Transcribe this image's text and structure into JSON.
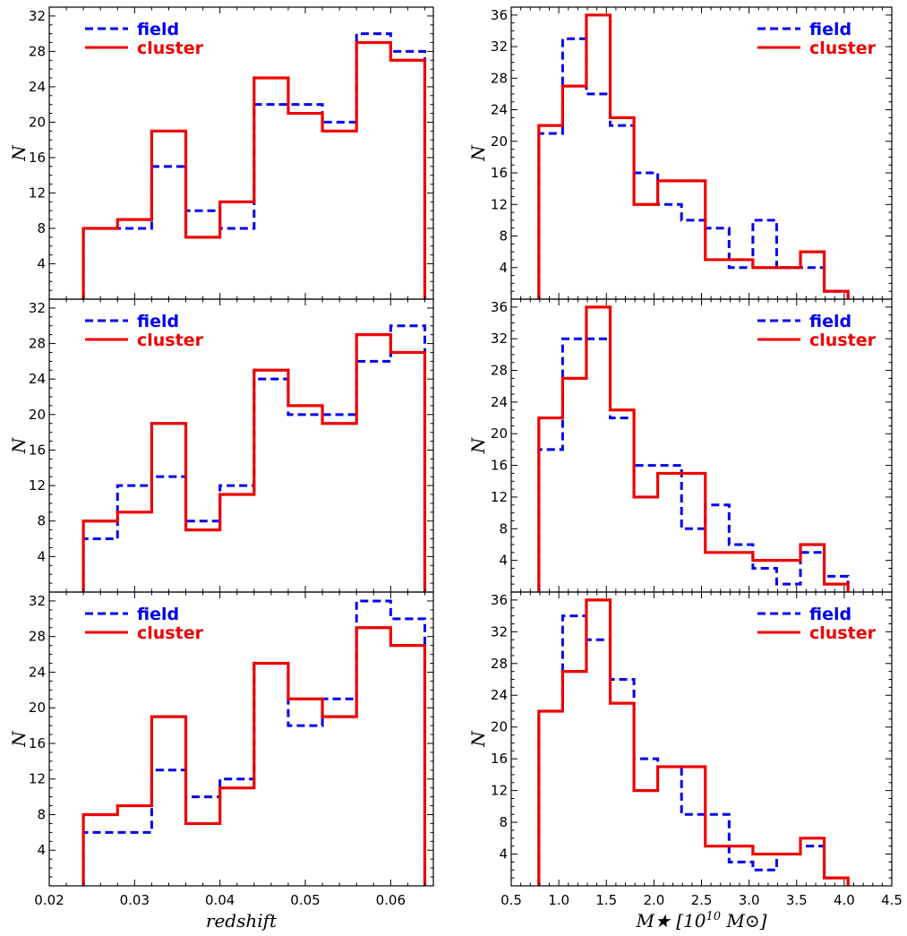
{
  "colors": {
    "field": "#0000ee",
    "cluster": "#ee0000"
  },
  "chart_data": [
    {
      "type": "histogram",
      "grid": false,
      "legend_position": "top-left",
      "xlabel": "",
      "ylabel": "N",
      "xlim": [
        0.02,
        0.065
      ],
      "ylim": [
        0,
        33
      ],
      "x_ticks": [],
      "y_ticks": [
        "4",
        "8",
        "12",
        "16",
        "20",
        "24",
        "28",
        "32"
      ],
      "bin_edges": [
        0.024,
        0.028,
        0.032,
        0.036,
        0.04,
        0.044,
        0.048,
        0.052,
        0.056,
        0.06,
        0.064
      ],
      "series": [
        {
          "name": "field",
          "line_style": "dashed",
          "values": [
            8,
            8,
            15,
            10,
            8,
            22,
            22,
            20,
            30,
            28
          ]
        },
        {
          "name": "cluster",
          "line_style": "solid",
          "values": [
            8,
            9,
            19,
            7,
            11,
            25,
            21,
            19,
            29,
            27
          ]
        }
      ]
    },
    {
      "type": "histogram",
      "grid": false,
      "legend_position": "top-right",
      "xlabel": "",
      "ylabel": "N",
      "xlim": [
        0.5,
        4.5
      ],
      "ylim": [
        0,
        37
      ],
      "x_ticks": [],
      "y_ticks": [
        "4",
        "8",
        "12",
        "16",
        "20",
        "24",
        "28",
        "32",
        "36"
      ],
      "bin_edges": [
        0.79,
        1.04,
        1.29,
        1.54,
        1.79,
        2.04,
        2.29,
        2.54,
        2.79,
        3.04,
        3.29,
        3.54,
        3.79,
        4.04
      ],
      "series": [
        {
          "name": "field",
          "line_style": "dashed",
          "values": [
            21,
            33,
            26,
            22,
            16,
            12,
            10,
            9,
            4,
            10,
            4,
            4,
            1
          ]
        },
        {
          "name": "cluster",
          "line_style": "solid",
          "values": [
            22,
            27,
            36,
            23,
            12,
            15,
            15,
            5,
            5,
            4,
            4,
            6,
            1
          ]
        }
      ]
    },
    {
      "type": "histogram",
      "grid": false,
      "legend_position": "top-left",
      "xlabel": "",
      "ylabel": "N",
      "xlim": [
        0.02,
        0.065
      ],
      "ylim": [
        0,
        33
      ],
      "x_ticks": [],
      "y_ticks": [
        "4",
        "8",
        "12",
        "16",
        "20",
        "24",
        "28",
        "32"
      ],
      "bin_edges": [
        0.024,
        0.028,
        0.032,
        0.036,
        0.04,
        0.044,
        0.048,
        0.052,
        0.056,
        0.06,
        0.064
      ],
      "series": [
        {
          "name": "field",
          "line_style": "dashed",
          "values": [
            6,
            12,
            13,
            8,
            12,
            24,
            20,
            20,
            26,
            30
          ]
        },
        {
          "name": "cluster",
          "line_style": "solid",
          "values": [
            8,
            9,
            19,
            7,
            11,
            25,
            21,
            19,
            29,
            27
          ]
        }
      ]
    },
    {
      "type": "histogram",
      "grid": false,
      "legend_position": "top-right",
      "xlabel": "",
      "ylabel": "N",
      "xlim": [
        0.5,
        4.5
      ],
      "ylim": [
        0,
        37
      ],
      "x_ticks": [],
      "y_ticks": [
        "4",
        "8",
        "12",
        "16",
        "20",
        "24",
        "28",
        "32",
        "36"
      ],
      "bin_edges": [
        0.79,
        1.04,
        1.29,
        1.54,
        1.79,
        2.04,
        2.29,
        2.54,
        2.79,
        3.04,
        3.29,
        3.54,
        3.79,
        4.04
      ],
      "series": [
        {
          "name": "field",
          "line_style": "dashed",
          "values": [
            18,
            32,
            32,
            22,
            16,
            16,
            8,
            11,
            6,
            3,
            1,
            5,
            2
          ]
        },
        {
          "name": "cluster",
          "line_style": "solid",
          "values": [
            22,
            27,
            36,
            23,
            12,
            15,
            15,
            5,
            5,
            4,
            4,
            6,
            1
          ]
        }
      ]
    },
    {
      "type": "histogram",
      "grid": false,
      "legend_position": "top-left",
      "xlabel": "redshift",
      "ylabel": "N",
      "xlim": [
        0.02,
        0.065
      ],
      "ylim": [
        0,
        33
      ],
      "x_ticks": [
        "0.02",
        "0.03",
        "0.04",
        "0.05",
        "0.06"
      ],
      "y_ticks": [
        "4",
        "8",
        "12",
        "16",
        "20",
        "24",
        "28",
        "32"
      ],
      "bin_edges": [
        0.024,
        0.028,
        0.032,
        0.036,
        0.04,
        0.044,
        0.048,
        0.052,
        0.056,
        0.06,
        0.064
      ],
      "series": [
        {
          "name": "field",
          "line_style": "dashed",
          "values": [
            6,
            6,
            13,
            10,
            12,
            25,
            18,
            21,
            32,
            30
          ]
        },
        {
          "name": "cluster",
          "line_style": "solid",
          "values": [
            8,
            9,
            19,
            7,
            11,
            25,
            21,
            19,
            29,
            27
          ]
        }
      ]
    },
    {
      "type": "histogram",
      "grid": false,
      "legend_position": "top-right",
      "xlabel": "M★ [10^10 M⊙]",
      "ylabel": "N",
      "xlim": [
        0.5,
        4.5
      ],
      "ylim": [
        0,
        37
      ],
      "x_ticks": [
        "0.5",
        "1.0",
        "1.5",
        "2.0",
        "2.5",
        "3.0",
        "3.5",
        "4.0",
        "4.5"
      ],
      "y_ticks": [
        "4",
        "8",
        "12",
        "16",
        "20",
        "24",
        "28",
        "32",
        "36"
      ],
      "bin_edges": [
        0.79,
        1.04,
        1.29,
        1.54,
        1.79,
        2.04,
        2.29,
        2.54,
        2.79,
        3.04,
        3.29,
        3.54,
        3.79,
        4.04
      ],
      "series": [
        {
          "name": "field",
          "line_style": "dashed",
          "values": [
            22,
            34,
            31,
            26,
            16,
            15,
            9,
            9,
            3,
            2,
            4,
            5,
            1
          ]
        },
        {
          "name": "cluster",
          "line_style": "solid",
          "values": [
            22,
            27,
            36,
            23,
            12,
            15,
            15,
            5,
            5,
            4,
            4,
            6,
            1
          ]
        }
      ]
    }
  ]
}
